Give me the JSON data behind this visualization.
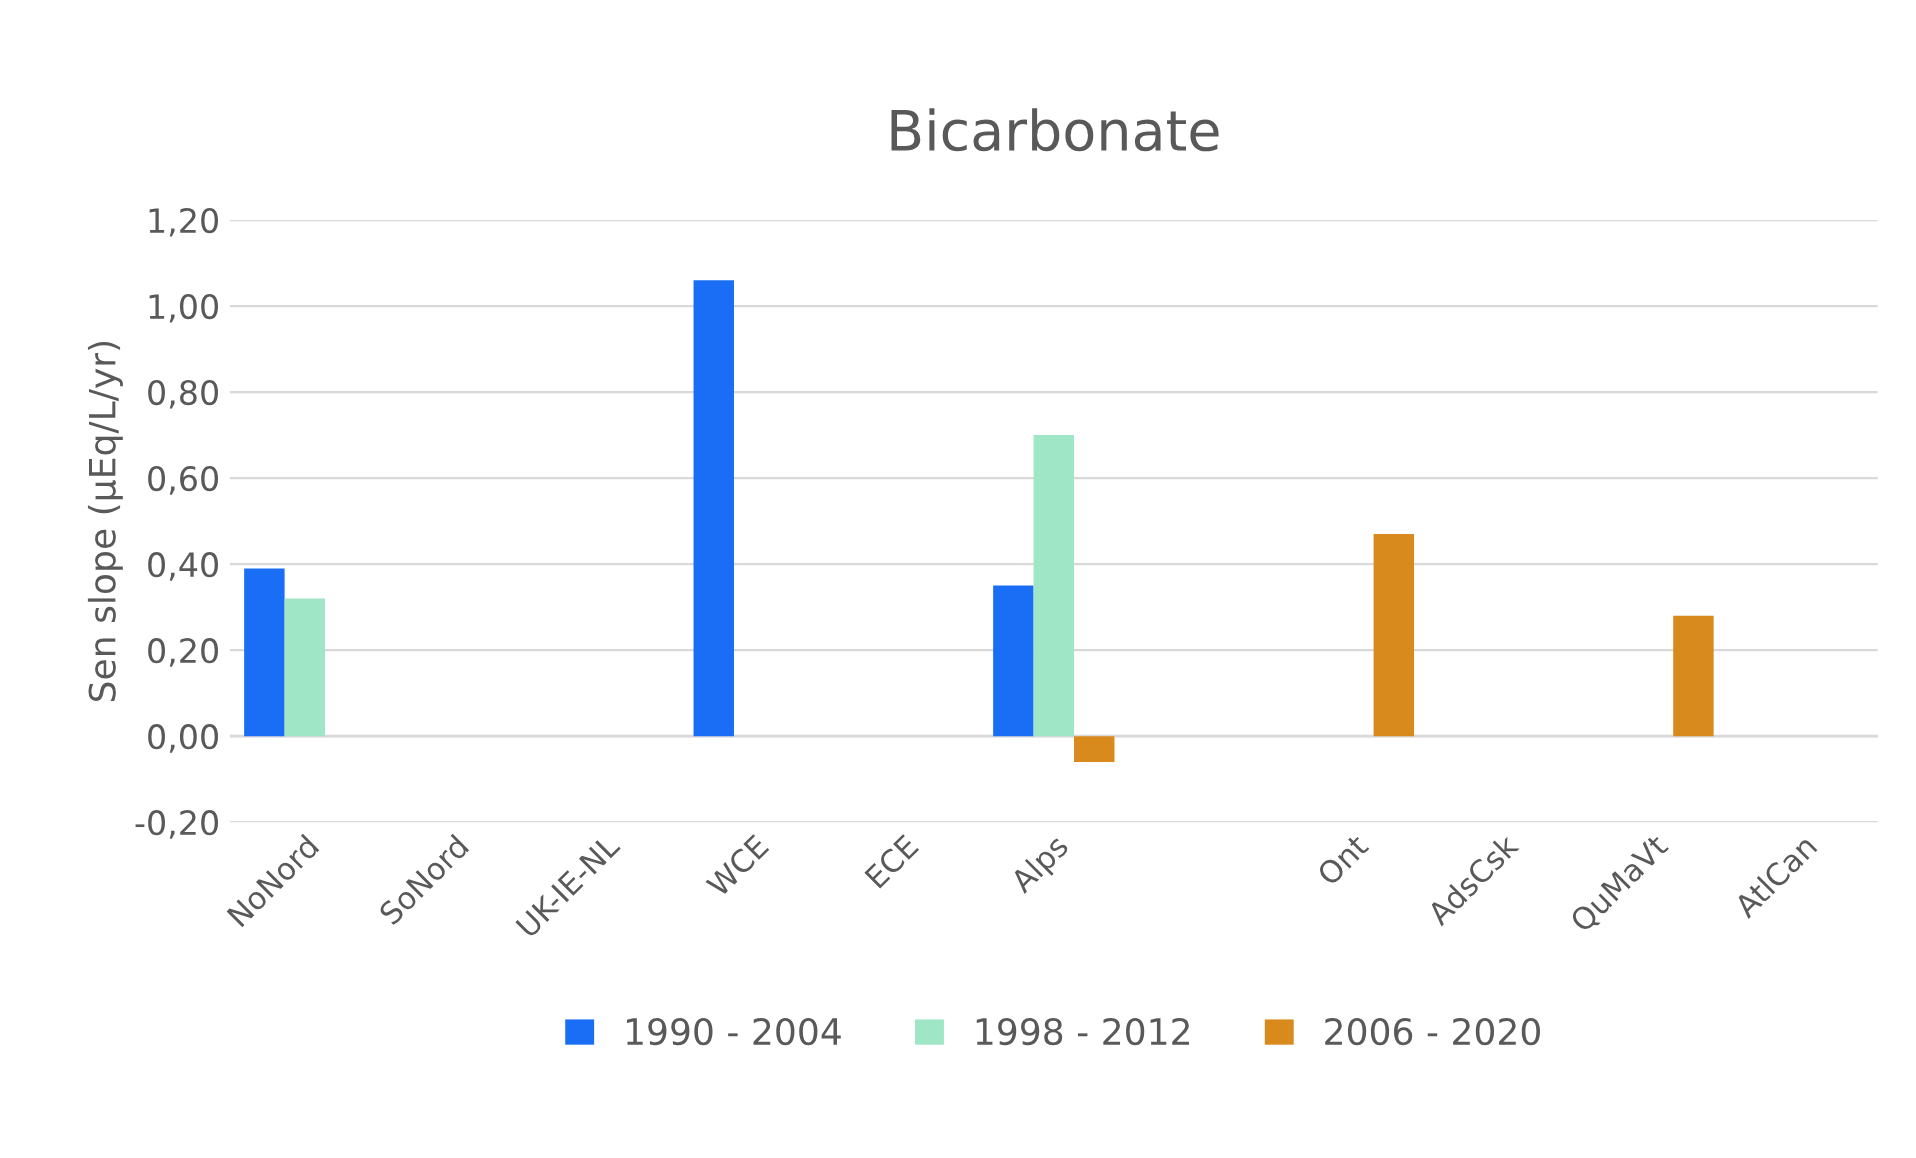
{
  "chart_data": {
    "type": "bar",
    "title": "Bicarbonate",
    "ylabel": "Sen slope (µEq/L/yr)",
    "categories": [
      "NoNord",
      "SoNord",
      "UK-IE-NL",
      "WCE",
      "ECE",
      "Alps",
      null,
      "Ont",
      "AdsCsk",
      "QuMaVt",
      "AtlCan"
    ],
    "series": [
      {
        "name": "1990 - 2004",
        "color": "#1a6ef5",
        "values": [
          0.39,
          null,
          null,
          1.06,
          null,
          0.35,
          null,
          null,
          null,
          null,
          null
        ]
      },
      {
        "name": "1998 - 2012",
        "color": "#9ee6c5",
        "values": [
          0.32,
          null,
          null,
          null,
          null,
          0.7,
          null,
          null,
          null,
          null,
          null
        ]
      },
      {
        "name": "2006 - 2020",
        "color": "#d88a1c",
        "values": [
          null,
          null,
          null,
          null,
          null,
          -0.06,
          null,
          0.47,
          null,
          0.28,
          null
        ]
      }
    ],
    "ylim": [
      -0.2,
      1.2
    ],
    "yticks": [
      {
        "value": -0.2,
        "label": "-0,20"
      },
      {
        "value": 0,
        "label": "0,00"
      },
      {
        "value": 0.2,
        "label": "0,20"
      },
      {
        "value": 0.4,
        "label": "0,40"
      },
      {
        "value": 0.6,
        "label": "0,60"
      },
      {
        "value": 0.8,
        "label": "0,80"
      },
      {
        "value": 1.0,
        "label": "1,00"
      },
      {
        "value": 1.2,
        "label": "1,20"
      }
    ],
    "grid": "y",
    "legend": "bottom"
  }
}
